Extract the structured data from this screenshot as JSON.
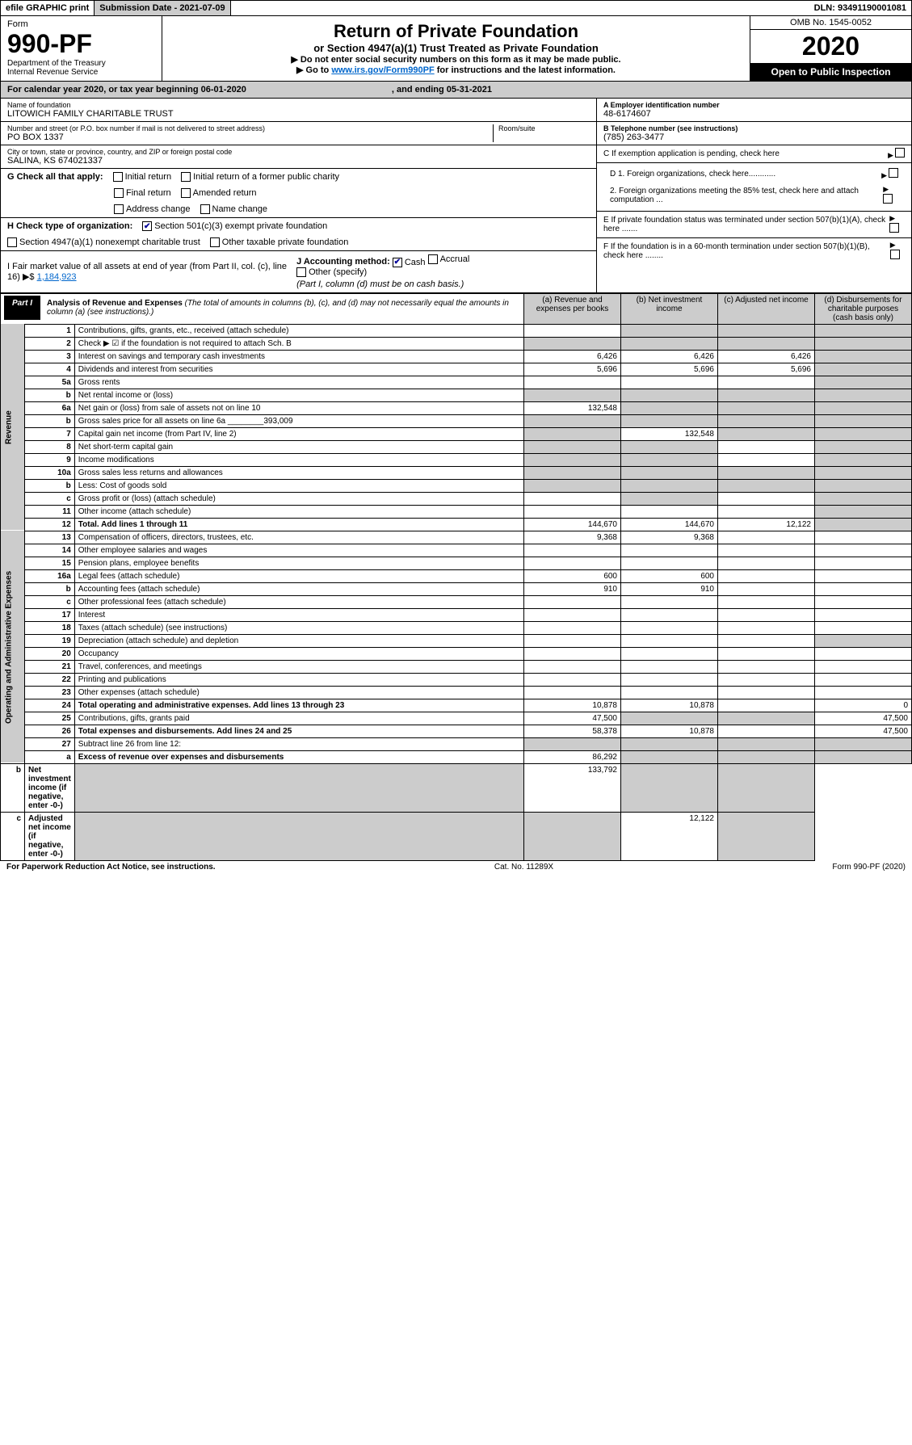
{
  "topbar": {
    "efile": "efile GRAPHIC print",
    "subdate": "Submission Date - 2021-07-09",
    "dln": "DLN: 93491190001081"
  },
  "header": {
    "form_label": "Form",
    "form_num": "990-PF",
    "dept": "Department of the Treasury\nInternal Revenue Service",
    "title": "Return of Private Foundation",
    "subtitle": "or Section 4947(a)(1) Trust Treated as Private Foundation",
    "instr1": "▶ Do not enter social security numbers on this form as it may be made public.",
    "instr2_pre": "▶ Go to ",
    "instr2_link": "www.irs.gov/Form990PF",
    "instr2_post": " for instructions and the latest information.",
    "omb": "OMB No. 1545-0052",
    "year": "2020",
    "open": "Open to Public Inspection"
  },
  "cal": {
    "prefix": "For calendar year 2020, or tax year beginning 06-01-2020",
    "mid": ", and ending 05-31-2021"
  },
  "name": {
    "label": "Name of foundation",
    "value": "LITOWICH FAMILY CHARITABLE TRUST"
  },
  "ein": {
    "label": "A Employer identification number",
    "value": "48-6174607"
  },
  "addr": {
    "label": "Number and street (or P.O. box number if mail is not delivered to street address)",
    "room_label": "Room/suite",
    "value": "PO BOX 1337"
  },
  "phone": {
    "label": "B Telephone number (see instructions)",
    "value": "(785) 263-3477"
  },
  "city": {
    "label": "City or town, state or province, country, and ZIP or foreign postal code",
    "value": "SALINA, KS  674021337"
  },
  "checkC": "C If exemption application is pending, check here",
  "checkG": {
    "label": "G Check all that apply:",
    "opts": [
      "Initial return",
      "Initial return of a former public charity",
      "Final return",
      "Amended return",
      "Address change",
      "Name change"
    ]
  },
  "checkD": {
    "d1": "D 1. Foreign organizations, check here............",
    "d2": "2. Foreign organizations meeting the 85% test, check here and attach computation ..."
  },
  "checkH": {
    "label": "H Check type of organization:",
    "opt1": "Section 501(c)(3) exempt private foundation",
    "opt2": "Section 4947(a)(1) nonexempt charitable trust",
    "opt3": "Other taxable private foundation"
  },
  "checkE": "E If private foundation status was terminated under section 507(b)(1)(A), check here .......",
  "checkI": {
    "label": "I Fair market value of all assets at end of year (from Part II, col. (c), line 16)",
    "arrow": "▶$",
    "value": "1,184,923"
  },
  "checkJ": {
    "label": "J Accounting method:",
    "cash": "Cash",
    "accrual": "Accrual",
    "other": "Other (specify)",
    "note": "(Part I, column (d) must be on cash basis.)"
  },
  "checkF": "F If the foundation is in a 60-month termination under section 507(b)(1)(B), check here ........",
  "part1": {
    "tab": "Part I",
    "heading": "Analysis of Revenue and Expenses",
    "note": "(The total of amounts in columns (b), (c), and (d) may not necessarily equal the amounts in column (a) (see instructions).)",
    "col_a": "(a) Revenue and expenses per books",
    "col_b": "(b) Net investment income",
    "col_c": "(c) Adjusted net income",
    "col_d": "(d) Disbursements for charitable purposes (cash basis only)"
  },
  "sections": {
    "revenue": "Revenue",
    "expenses": "Operating and Administrative Expenses"
  },
  "rows": [
    {
      "n": "1",
      "d": "Contributions, gifts, grants, etc., received (attach schedule)",
      "a": "",
      "b": "",
      "c": "",
      "dd": "",
      "gb": true,
      "gc": true,
      "gd": true
    },
    {
      "n": "2",
      "d": "Check ▶ ☑ if the foundation is not required to attach Sch. B",
      "a": "",
      "b": "",
      "c": "",
      "dd": "",
      "ga": true,
      "gb": true,
      "gc": true,
      "gd": true
    },
    {
      "n": "3",
      "d": "Interest on savings and temporary cash investments",
      "a": "6,426",
      "b": "6,426",
      "c": "6,426",
      "dd": "",
      "gd": true
    },
    {
      "n": "4",
      "d": "Dividends and interest from securities",
      "a": "5,696",
      "b": "5,696",
      "c": "5,696",
      "dd": "",
      "gd": true
    },
    {
      "n": "5a",
      "d": "Gross rents",
      "a": "",
      "b": "",
      "c": "",
      "dd": "",
      "gd": true
    },
    {
      "n": "b",
      "d": "Net rental income or (loss)",
      "a": "",
      "b": "",
      "c": "",
      "dd": "",
      "ga": true,
      "gb": true,
      "gc": true,
      "gd": true
    },
    {
      "n": "6a",
      "d": "Net gain or (loss) from sale of assets not on line 10",
      "a": "132,548",
      "b": "",
      "c": "",
      "dd": "",
      "gb": true,
      "gc": true,
      "gd": true
    },
    {
      "n": "b",
      "d": "Gross sales price for all assets on line 6a ________393,009",
      "a": "",
      "b": "",
      "c": "",
      "dd": "",
      "ga": true,
      "gb": true,
      "gc": true,
      "gd": true
    },
    {
      "n": "7",
      "d": "Capital gain net income (from Part IV, line 2)",
      "a": "",
      "b": "132,548",
      "c": "",
      "dd": "",
      "ga": true,
      "gc": true,
      "gd": true
    },
    {
      "n": "8",
      "d": "Net short-term capital gain",
      "a": "",
      "b": "",
      "c": "",
      "dd": "",
      "ga": true,
      "gb": true,
      "gd": true
    },
    {
      "n": "9",
      "d": "Income modifications",
      "a": "",
      "b": "",
      "c": "",
      "dd": "",
      "ga": true,
      "gb": true,
      "gd": true
    },
    {
      "n": "10a",
      "d": "Gross sales less returns and allowances",
      "a": "",
      "b": "",
      "c": "",
      "dd": "",
      "ga": true,
      "gb": true,
      "gc": true,
      "gd": true
    },
    {
      "n": "b",
      "d": "Less: Cost of goods sold",
      "a": "",
      "b": "",
      "c": "",
      "dd": "",
      "ga": true,
      "gb": true,
      "gc": true,
      "gd": true
    },
    {
      "n": "c",
      "d": "Gross profit or (loss) (attach schedule)",
      "a": "",
      "b": "",
      "c": "",
      "dd": "",
      "gb": true,
      "gd": true
    },
    {
      "n": "11",
      "d": "Other income (attach schedule)",
      "a": "",
      "b": "",
      "c": "",
      "dd": "",
      "gd": true
    },
    {
      "n": "12",
      "d": "Total. Add lines 1 through 11",
      "bold": true,
      "a": "144,670",
      "b": "144,670",
      "c": "12,122",
      "dd": "",
      "gd": true
    },
    {
      "n": "13",
      "d": "Compensation of officers, directors, trustees, etc.",
      "a": "9,368",
      "b": "9,368",
      "c": "",
      "dd": ""
    },
    {
      "n": "14",
      "d": "Other employee salaries and wages",
      "a": "",
      "b": "",
      "c": "",
      "dd": ""
    },
    {
      "n": "15",
      "d": "Pension plans, employee benefits",
      "a": "",
      "b": "",
      "c": "",
      "dd": ""
    },
    {
      "n": "16a",
      "d": "Legal fees (attach schedule)",
      "a": "600",
      "b": "600",
      "c": "",
      "dd": ""
    },
    {
      "n": "b",
      "d": "Accounting fees (attach schedule)",
      "a": "910",
      "b": "910",
      "c": "",
      "dd": ""
    },
    {
      "n": "c",
      "d": "Other professional fees (attach schedule)",
      "a": "",
      "b": "",
      "c": "",
      "dd": ""
    },
    {
      "n": "17",
      "d": "Interest",
      "a": "",
      "b": "",
      "c": "",
      "dd": ""
    },
    {
      "n": "18",
      "d": "Taxes (attach schedule) (see instructions)",
      "a": "",
      "b": "",
      "c": "",
      "dd": ""
    },
    {
      "n": "19",
      "d": "Depreciation (attach schedule) and depletion",
      "a": "",
      "b": "",
      "c": "",
      "dd": "",
      "gd": true
    },
    {
      "n": "20",
      "d": "Occupancy",
      "a": "",
      "b": "",
      "c": "",
      "dd": ""
    },
    {
      "n": "21",
      "d": "Travel, conferences, and meetings",
      "a": "",
      "b": "",
      "c": "",
      "dd": ""
    },
    {
      "n": "22",
      "d": "Printing and publications",
      "a": "",
      "b": "",
      "c": "",
      "dd": ""
    },
    {
      "n": "23",
      "d": "Other expenses (attach schedule)",
      "a": "",
      "b": "",
      "c": "",
      "dd": ""
    },
    {
      "n": "24",
      "d": "Total operating and administrative expenses. Add lines 13 through 23",
      "bold": true,
      "a": "10,878",
      "b": "10,878",
      "c": "",
      "dd": "0"
    },
    {
      "n": "25",
      "d": "Contributions, gifts, grants paid",
      "a": "47,500",
      "b": "",
      "c": "",
      "dd": "47,500",
      "gb": true,
      "gc": true
    },
    {
      "n": "26",
      "d": "Total expenses and disbursements. Add lines 24 and 25",
      "bold": true,
      "a": "58,378",
      "b": "10,878",
      "c": "",
      "dd": "47,500"
    },
    {
      "n": "27",
      "d": "Subtract line 26 from line 12:",
      "a": "",
      "b": "",
      "c": "",
      "dd": "",
      "ga": true,
      "gb": true,
      "gc": true,
      "gd": true
    },
    {
      "n": "a",
      "d": "Excess of revenue over expenses and disbursements",
      "bold": true,
      "a": "86,292",
      "b": "",
      "c": "",
      "dd": "",
      "gb": true,
      "gc": true,
      "gd": true
    },
    {
      "n": "b",
      "d": "Net investment income (if negative, enter -0-)",
      "bold": true,
      "a": "",
      "b": "133,792",
      "c": "",
      "dd": "",
      "ga": true,
      "gc": true,
      "gd": true
    },
    {
      "n": "c",
      "d": "Adjusted net income (if negative, enter -0-)",
      "bold": true,
      "a": "",
      "b": "",
      "c": "12,122",
      "dd": "",
      "ga": true,
      "gb": true,
      "gd": true
    }
  ],
  "footer": {
    "left": "For Paperwork Reduction Act Notice, see instructions.",
    "mid": "Cat. No. 11289X",
    "right": "Form 990-PF (2020)"
  }
}
